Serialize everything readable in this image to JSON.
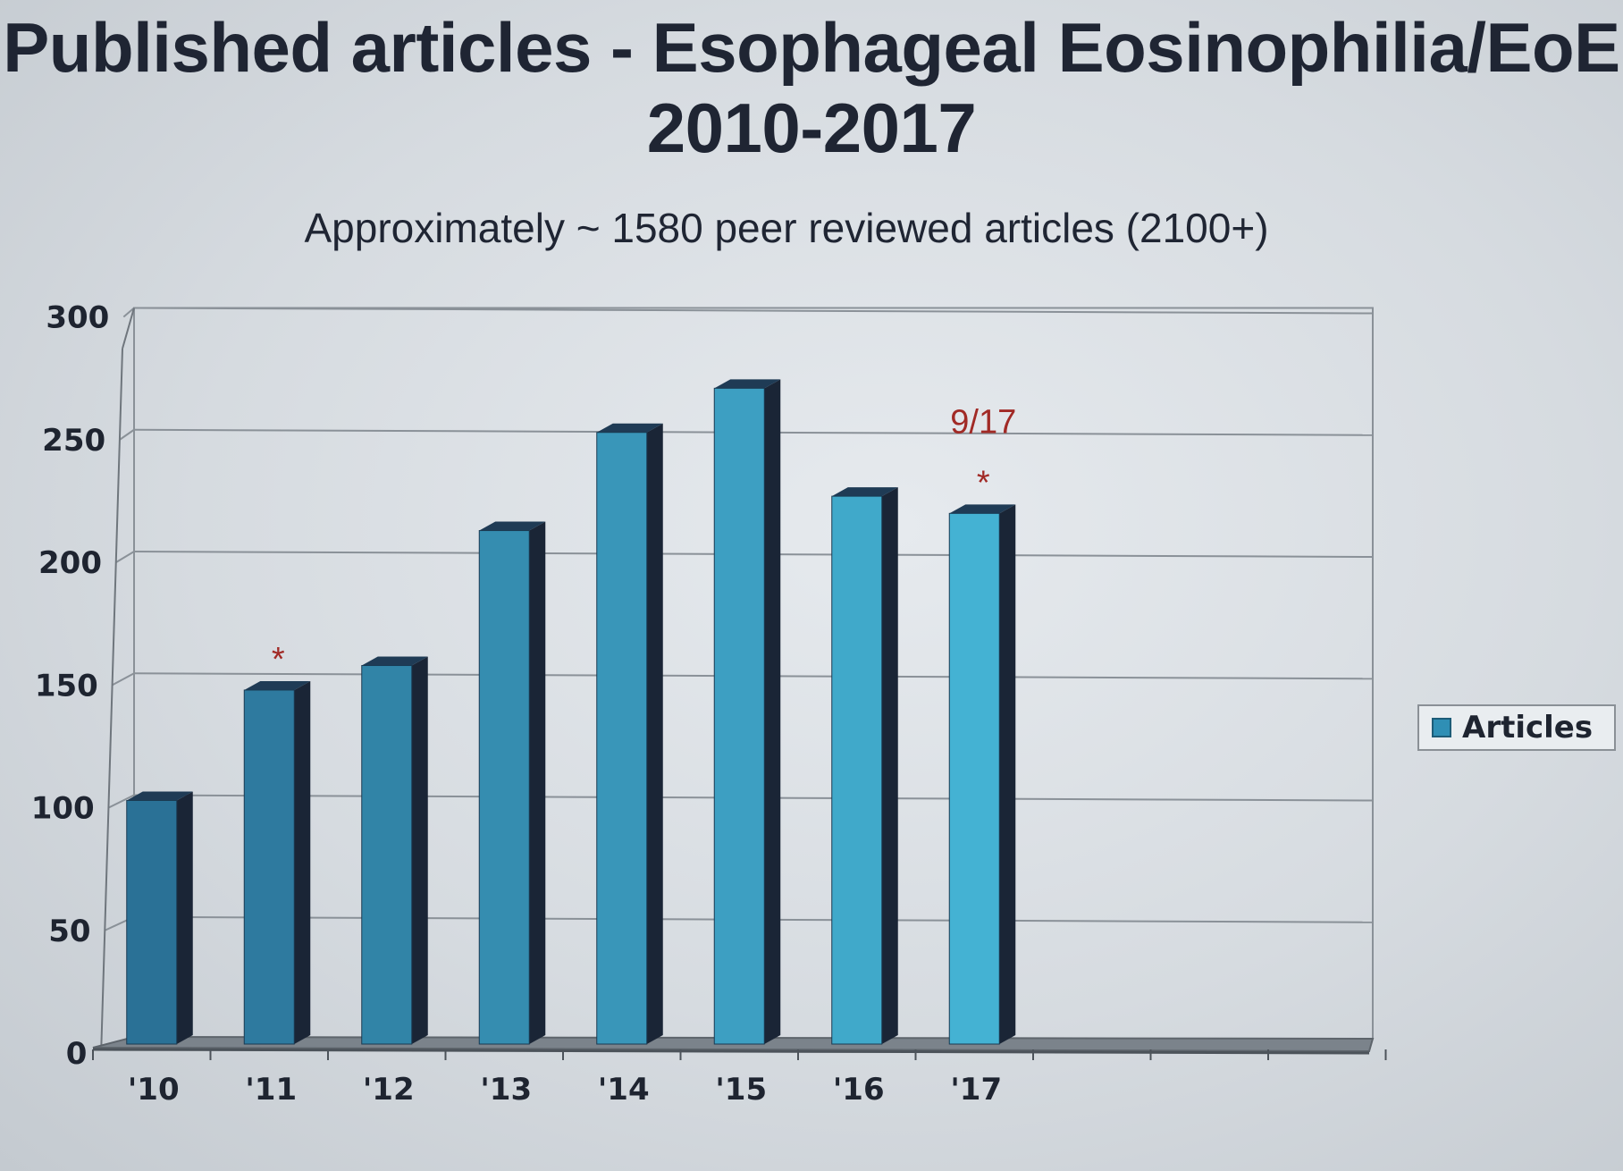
{
  "title_line1": "Published articles - Esophageal Eosinophilia/EoE",
  "title_line2": "2010-2017",
  "subtitle": "Approximately ~ 1580 peer reviewed articles (2100+)",
  "chart_data": {
    "type": "bar",
    "categories": [
      "'10",
      "'11",
      "'12",
      "'13",
      "'14",
      "'15",
      "'16",
      "'17"
    ],
    "series": [
      {
        "name": "Articles",
        "values": [
          100,
          145,
          155,
          210,
          250,
          268,
          224,
          217
        ]
      }
    ],
    "ylim": [
      0,
      300
    ],
    "yticks": [
      "0",
      "50",
      "100",
      "150",
      "200",
      "250",
      "300"
    ],
    "grid": true,
    "legend_position": "right",
    "annotations": [
      {
        "category": "'11",
        "text": "*"
      },
      {
        "category": "'17",
        "text": "*"
      },
      {
        "category": "'17",
        "text": "9/17"
      }
    ]
  },
  "colors": {
    "bar_front_dark": "#2a7196",
    "bar_front_light": "#44b2d3",
    "bar_side": "#1a2536",
    "bar_top": "#1f3b55",
    "annotation": "#a12a26"
  }
}
